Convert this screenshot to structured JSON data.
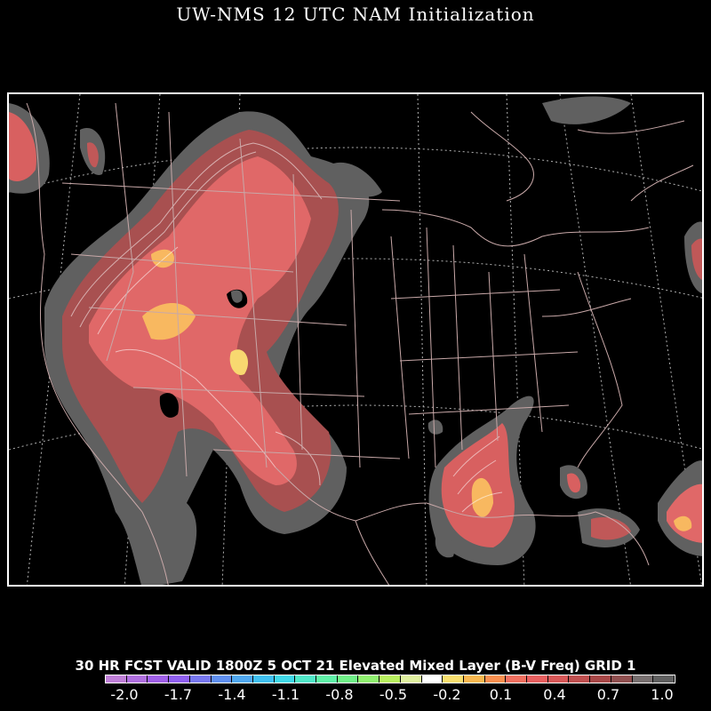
{
  "header": {
    "title": "UW-NMS 12 UTC NAM Initialization"
  },
  "caption": "30 HR FCST VALID 1800Z  5 OCT 21 Elevated Mixed Layer (B-V Freq) GRID 1",
  "colorbar": {
    "colors": [
      "#c080d8",
      "#b070e0",
      "#a060e8",
      "#9060f0",
      "#7878f0",
      "#6090f0",
      "#50a8f0",
      "#40c0f0",
      "#40d8e8",
      "#50e8c8",
      "#60f0a8",
      "#70f088",
      "#90f070",
      "#b8f060",
      "#e0f0a0",
      "#ffffff",
      "#f8e070",
      "#f8b850",
      "#f89050",
      "#f07060",
      "#e86060",
      "#d85858",
      "#c05050",
      "#a84848",
      "#905050",
      "#787070",
      "#606060"
    ],
    "tick_labels": [
      "-2.0",
      "-1.7",
      "-1.4",
      "-1.1",
      "-0.8",
      "-0.5",
      "-0.2",
      "0.1",
      "0.4",
      "0.7",
      "1.0"
    ]
  },
  "chart_data": {
    "type": "heatmap",
    "title": "UW-NMS 12 UTC NAM Initialization",
    "subtitle": "30 HR FCST VALID 1800Z  5 OCT 21 Elevated Mixed Layer (B-V Freq) GRID 1",
    "value_range": [
      -2.0,
      1.0
    ],
    "colorbar_ticks": [
      -2.0,
      -1.7,
      -1.4,
      -1.1,
      -0.8,
      -0.5,
      -0.2,
      0.1,
      0.4,
      0.7,
      1.0
    ],
    "colors": {
      "low_level": "#606060",
      "mid_level": "#c05858",
      "high_level": "#f07070",
      "peak_level": "#f8c860",
      "borders": "#c8a8a8",
      "graticule": "#b0b0b0"
    }
  }
}
